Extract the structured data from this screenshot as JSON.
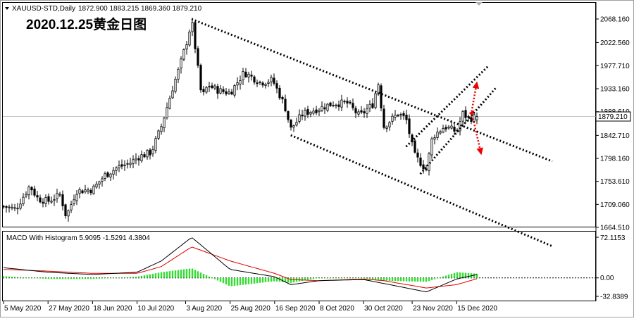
{
  "header": {
    "symbol": "XAUUSD-STD,Daily",
    "ohlc": "1872.900 1883.215 1869.360 1879.210",
    "overlay_title": "2020.12.25黄金日图"
  },
  "price_axis": {
    "ticks": [
      "2068.160",
      "2022.560",
      "1977.710",
      "1933.160",
      "1888.610",
      "1842.710",
      "1798.160",
      "1753.610",
      "1709.060",
      "1664.510"
    ],
    "current_price_label": "1879.210"
  },
  "macd_panel": {
    "title": "MACD With Histogram 5.9095 -1.5291 4.3804",
    "ticks": [
      "72.1153",
      "0.00",
      "-32.8389"
    ]
  },
  "date_axis": {
    "labels": [
      "5 May 2020",
      "27 May 2020",
      "18 Jun 2020",
      "10 Jul 2020",
      "3 Aug 2020",
      "25 Aug 2020",
      "16 Sep 2020",
      "8 Oct 2020",
      "30 Oct 2020",
      "23 Nov 2020",
      "15 Dec 2020"
    ]
  },
  "colors": {
    "bull_candle": "#ffffff",
    "bear_candle": "#000000",
    "macd_histogram": "#33dd33",
    "signal_line": "#dd0000",
    "macd_line": "#000000",
    "arrows": "#ee0000"
  },
  "chart_data": [
    {
      "type": "candlestick",
      "title": "2020.12.25黄金日图",
      "ylim": [
        1664.51,
        2068.16
      ],
      "x_start": "5 May 2020",
      "x_end": "25 Dec 2020",
      "close_path": [
        [
          "5 May 2020",
          1705
        ],
        [
          "11 May 2020",
          1700
        ],
        [
          "18 May 2020",
          1745
        ],
        [
          "22 May 2020",
          1720
        ],
        [
          "27 May 2020",
          1715
        ],
        [
          "2 Jun 2020",
          1728
        ],
        [
          "5 Jun 2020",
          1685
        ],
        [
          "10 Jun 2020",
          1735
        ],
        [
          "18 Jun 2020",
          1738
        ],
        [
          "24 Jun 2020",
          1765
        ],
        [
          "30 Jun 2020",
          1780
        ],
        [
          "7 Jul 2020",
          1790
        ],
        [
          "10 Jul 2020",
          1800
        ],
        [
          "17 Jul 2020",
          1810
        ],
        [
          "22 Jul 2020",
          1860
        ],
        [
          "28 Jul 2020",
          1940
        ],
        [
          "31 Jul 2020",
          1975
        ],
        [
          "4 Aug 2020",
          2030
        ],
        [
          "6 Aug 2020",
          2065
        ],
        [
          "11 Aug 2020",
          1915
        ],
        [
          "14 Aug 2020",
          1940
        ],
        [
          "19 Aug 2020",
          1930
        ],
        [
          "25 Aug 2020",
          1925
        ],
        [
          "1 Sep 2020",
          1965
        ],
        [
          "9 Sep 2020",
          1945
        ],
        [
          "15 Sep 2020",
          1950
        ],
        [
          "21 Sep 2020",
          1900
        ],
        [
          "24 Sep 2020",
          1855
        ],
        [
          "30 Sep 2020",
          1885
        ],
        [
          "8 Oct 2020",
          1895
        ],
        [
          "15 Oct 2020",
          1905
        ],
        [
          "22 Oct 2020",
          1905
        ],
        [
          "28 Oct 2020",
          1880
        ],
        [
          "4 Nov 2020",
          1905
        ],
        [
          "6 Nov 2020",
          1950
        ],
        [
          "9 Nov 2020",
          1860
        ],
        [
          "16 Nov 2020",
          1885
        ],
        [
          "20 Nov 2020",
          1875
        ],
        [
          "24 Nov 2020",
          1805
        ],
        [
          "30 Nov 2020",
          1776
        ],
        [
          "3 Dec 2020",
          1840
        ],
        [
          "9 Dec 2020",
          1860
        ],
        [
          "15 Dec 2020",
          1850
        ],
        [
          "18 Dec 2020",
          1885
        ],
        [
          "21 Dec 2020",
          1875
        ],
        [
          "25 Dec 2020",
          1879.21
        ]
      ],
      "last": {
        "open": 1872.9,
        "high": 1883.215,
        "low": 1869.36,
        "close": 1879.21
      },
      "trendlines": [
        {
          "from": [
            "6 Aug 2020",
            2068
          ],
          "to": [
            "25 Dec 2020",
            1850
          ],
          "style": "dotted"
        },
        {
          "from": [
            "24 Sep 2020",
            1843
          ],
          "to": [
            "25 Dec 2020",
            1690
          ],
          "style": "dotted"
        },
        {
          "from": [
            "27 Nov 2020",
            1768
          ],
          "to": [
            "25 Dec 2020",
            1893
          ],
          "style": "dotted"
        },
        {
          "from": [
            "20 Nov 2020",
            1821
          ],
          "to": [
            "21 Dec 2020",
            1940
          ],
          "style": "dotted"
        }
      ],
      "arrows": [
        "up",
        "down"
      ]
    },
    {
      "type": "macd",
      "title": "MACD With Histogram 5.9095 -1.5291 4.3804",
      "ylim": [
        -32.8389,
        72.1153
      ],
      "last": {
        "macd": 5.9095,
        "signal": -1.5291,
        "histogram": 4.3804
      },
      "macd_path": [
        [
          "5 May 2020",
          18
        ],
        [
          "27 May 2020",
          10
        ],
        [
          "18 Jun 2020",
          6
        ],
        [
          "10 Jul 2020",
          10
        ],
        [
          "22 Jul 2020",
          30
        ],
        [
          "6 Aug 2020",
          72
        ],
        [
          "25 Aug 2020",
          15
        ],
        [
          "16 Sep 2020",
          2
        ],
        [
          "24 Sep 2020",
          -12
        ],
        [
          "8 Oct 2020",
          -5
        ],
        [
          "30 Oct 2020",
          -3
        ],
        [
          "9 Nov 2020",
          -10
        ],
        [
          "30 Nov 2020",
          -25
        ],
        [
          "15 Dec 2020",
          -2
        ],
        [
          "25 Dec 2020",
          5.9
        ]
      ],
      "signal_path": [
        [
          "5 May 2020",
          15
        ],
        [
          "27 May 2020",
          12
        ],
        [
          "18 Jun 2020",
          8
        ],
        [
          "10 Jul 2020",
          8
        ],
        [
          "22 Jul 2020",
          20
        ],
        [
          "6 Aug 2020",
          55
        ],
        [
          "25 Aug 2020",
          30
        ],
        [
          "16 Sep 2020",
          8
        ],
        [
          "24 Sep 2020",
          -3
        ],
        [
          "8 Oct 2020",
          -5
        ],
        [
          "30 Oct 2020",
          -2
        ],
        [
          "9 Nov 2020",
          -5
        ],
        [
          "30 Nov 2020",
          -18
        ],
        [
          "15 Dec 2020",
          -12
        ],
        [
          "25 Dec 2020",
          -1.5
        ]
      ]
    }
  ]
}
